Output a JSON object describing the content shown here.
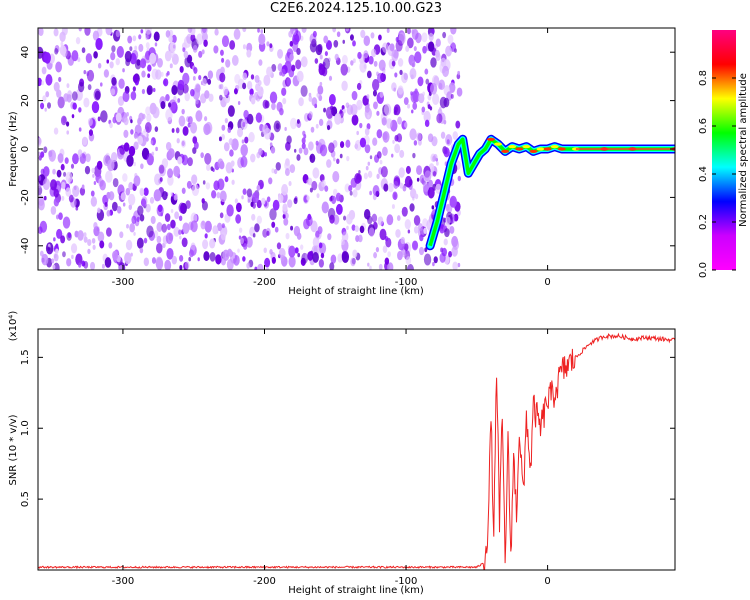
{
  "title": "C2E6.2024.125.10.00.G23",
  "chart_data": [
    {
      "type": "heatmap",
      "xlabel": "Height of straight line (km)",
      "ylabel": "Frequency (Hz)",
      "xlim": [
        -360,
        90
      ],
      "ylim": [
        -50,
        50
      ],
      "xticks": [
        -300,
        -200,
        -100,
        0
      ],
      "yticks": [
        -40,
        -20,
        0,
        20,
        40
      ],
      "colorbar": {
        "label": "Normalized spectral amplitude",
        "range": [
          0.0,
          1.0
        ],
        "ticks": [
          0.0,
          0.2,
          0.4,
          0.6,
          0.8
        ],
        "colormap": [
          "#ff00ff",
          "#cc00ff",
          "#0000ff",
          "#00ffff",
          "#00ff00",
          "#ffff00",
          "#ff0000",
          "#ff0080"
        ]
      },
      "noise_region": {
        "x_range": [
          -360,
          -62
        ],
        "freq_range": [
          -50,
          50
        ]
      },
      "signal_trace": {
        "x": [
          -83,
          -78,
          -73,
          -68,
          -63,
          -60,
          -56,
          -52,
          -48,
          -44,
          -40,
          -35,
          -30,
          -25,
          -20,
          -15,
          -10,
          -5,
          0,
          5,
          10,
          20,
          40,
          60,
          90
        ],
        "freq_hz": [
          -40,
          -30,
          -18,
          -6,
          2,
          4,
          -10,
          -6,
          -2,
          0,
          4,
          2,
          -1,
          1,
          0,
          1,
          -1,
          0,
          0,
          1,
          0,
          0,
          0,
          0,
          0
        ]
      }
    },
    {
      "type": "line",
      "xlabel": "Height of straight line (km)",
      "ylabel": "SNR (10 * v/v)",
      "y_multiplier": "(x10⁴)",
      "xlim": [
        -360,
        90
      ],
      "ylim": [
        0,
        1.7
      ],
      "xticks": [
        -300,
        -200,
        -100,
        0
      ],
      "yticks": [
        0.5,
        1.0,
        1.5
      ],
      "ytick_labels": [
        "0.5",
        "1.0",
        "1.5"
      ],
      "color": "#ee2222",
      "series": [
        {
          "x": [
            -360,
            -300,
            -200,
            -100,
            -60,
            -50,
            -45,
            -42,
            -40,
            -38,
            -36,
            -34,
            -32,
            -30,
            -28,
            -26,
            -24,
            -22,
            -20,
            -17,
            -15,
            -12,
            -10,
            -5,
            0,
            5,
            10,
            20,
            30,
            40,
            50,
            60,
            70,
            90
          ],
          "values": [
            0.02,
            0.02,
            0.02,
            0.02,
            0.02,
            0.02,
            0.05,
            0.3,
            1.1,
            0.2,
            1.45,
            0.3,
            1.1,
            0.05,
            0.9,
            0.1,
            0.8,
            0.4,
            1.0,
            0.5,
            1.1,
            0.7,
            1.15,
            1.0,
            1.2,
            1.25,
            1.4,
            1.5,
            1.6,
            1.65,
            1.65,
            1.63,
            1.64,
            1.62
          ]
        }
      ]
    }
  ]
}
